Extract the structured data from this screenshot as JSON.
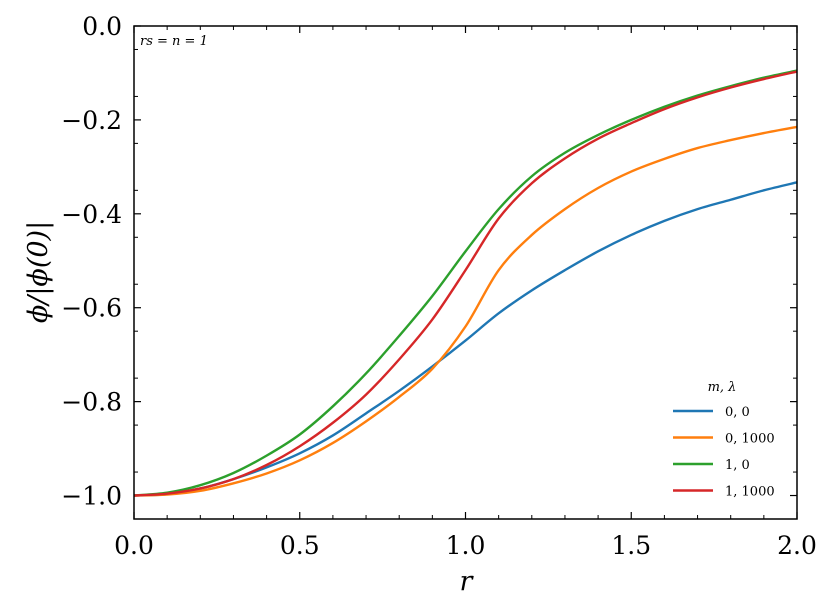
{
  "chart_data": {
    "type": "line",
    "xlabel": "r",
    "ylabel": "ϕ/|ϕ(0)|",
    "xlim": [
      0.0,
      2.0
    ],
    "ylim": [
      -1.05,
      0.0
    ],
    "xticks": [
      0.0,
      0.5,
      1.0,
      1.5,
      2.0
    ],
    "xtick_labels": [
      "0.0",
      "0.5",
      "1.0",
      "1.5",
      "2.0"
    ],
    "yticks": [
      0.0,
      -0.2,
      -0.4,
      -0.6,
      -0.8,
      -1.0
    ],
    "ytick_labels": [
      "0.0",
      "−0.2",
      "−0.4",
      "−0.6",
      "−0.8",
      "−1.0"
    ],
    "grid": false,
    "annotation": "rs = n = 1",
    "legend": {
      "title": "m, λ",
      "placement": "lower-right"
    },
    "series": [
      {
        "name": "0, 0",
        "color": "#1f77b4",
        "x": [
          0.0,
          0.1,
          0.2,
          0.3,
          0.4,
          0.5,
          0.6,
          0.7,
          0.8,
          0.9,
          1.0,
          1.1,
          1.2,
          1.3,
          1.4,
          1.5,
          1.6,
          1.7,
          1.8,
          1.9,
          2.0
        ],
        "y": [
          -1.0,
          -0.997,
          -0.985,
          -0.965,
          -0.94,
          -0.91,
          -0.872,
          -0.825,
          -0.777,
          -0.725,
          -0.67,
          -0.612,
          -0.563,
          -0.52,
          -0.48,
          -0.445,
          -0.415,
          -0.39,
          -0.37,
          -0.35,
          -0.333
        ]
      },
      {
        "name": "0, 1000",
        "color": "#ff7f0e",
        "x": [
          0.0,
          0.1,
          0.2,
          0.3,
          0.4,
          0.5,
          0.6,
          0.7,
          0.8,
          0.9,
          1.0,
          1.1,
          1.2,
          1.3,
          1.4,
          1.5,
          1.6,
          1.7,
          1.8,
          1.9,
          2.0
        ],
        "y": [
          -1.0,
          -0.998,
          -0.99,
          -0.974,
          -0.953,
          -0.925,
          -0.888,
          -0.842,
          -0.79,
          -0.73,
          -0.64,
          -0.52,
          -0.445,
          -0.39,
          -0.345,
          -0.31,
          -0.283,
          -0.26,
          -0.243,
          -0.228,
          -0.215
        ]
      },
      {
        "name": "1, 0",
        "color": "#2ca02c",
        "x": [
          0.0,
          0.1,
          0.2,
          0.3,
          0.4,
          0.5,
          0.6,
          0.7,
          0.8,
          0.9,
          1.0,
          1.1,
          1.2,
          1.3,
          1.4,
          1.5,
          1.6,
          1.7,
          1.8,
          1.9,
          2.0
        ],
        "y": [
          -1.0,
          -0.994,
          -0.978,
          -0.952,
          -0.915,
          -0.87,
          -0.81,
          -0.74,
          -0.66,
          -0.575,
          -0.48,
          -0.39,
          -0.32,
          -0.27,
          -0.232,
          -0.2,
          -0.172,
          -0.148,
          -0.128,
          -0.11,
          -0.095
        ]
      },
      {
        "name": "1, 1000",
        "color": "#d62728",
        "x": [
          0.0,
          0.1,
          0.2,
          0.3,
          0.4,
          0.5,
          0.6,
          0.7,
          0.8,
          0.9,
          1.0,
          1.1,
          1.2,
          1.3,
          1.4,
          1.5,
          1.6,
          1.7,
          1.8,
          1.9,
          2.0
        ],
        "y": [
          -1.0,
          -0.996,
          -0.985,
          -0.965,
          -0.935,
          -0.895,
          -0.845,
          -0.785,
          -0.71,
          -0.625,
          -0.52,
          -0.41,
          -0.335,
          -0.282,
          -0.24,
          -0.207,
          -0.177,
          -0.152,
          -0.131,
          -0.113,
          -0.097
        ]
      }
    ]
  }
}
